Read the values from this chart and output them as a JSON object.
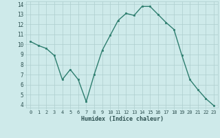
{
  "x": [
    0,
    1,
    2,
    3,
    4,
    5,
    6,
    7,
    8,
    9,
    10,
    11,
    12,
    13,
    14,
    15,
    16,
    17,
    18,
    19,
    20,
    21,
    22,
    23
  ],
  "y": [
    10.3,
    9.9,
    9.6,
    8.9,
    6.5,
    7.5,
    6.5,
    4.3,
    7.0,
    9.4,
    10.9,
    12.4,
    13.1,
    12.9,
    13.8,
    13.8,
    13.0,
    12.2,
    11.5,
    8.9,
    6.5,
    5.5,
    4.6,
    3.9
  ],
  "xlabel": "Humidex (Indice chaleur)",
  "ylim": [
    4,
    14
  ],
  "xlim": [
    0,
    23
  ],
  "yticks": [
    4,
    5,
    6,
    7,
    8,
    9,
    10,
    11,
    12,
    13,
    14
  ],
  "xticks": [
    0,
    1,
    2,
    3,
    4,
    5,
    6,
    7,
    8,
    9,
    10,
    11,
    12,
    13,
    14,
    15,
    16,
    17,
    18,
    19,
    20,
    21,
    22,
    23
  ],
  "line_color": "#2d7d6e",
  "marker_color": "#2d7d6e",
  "bg_color": "#ceeaea",
  "grid_color": "#aecece",
  "axis_label_color": "#2d5050",
  "tick_label_color": "#2d5050"
}
